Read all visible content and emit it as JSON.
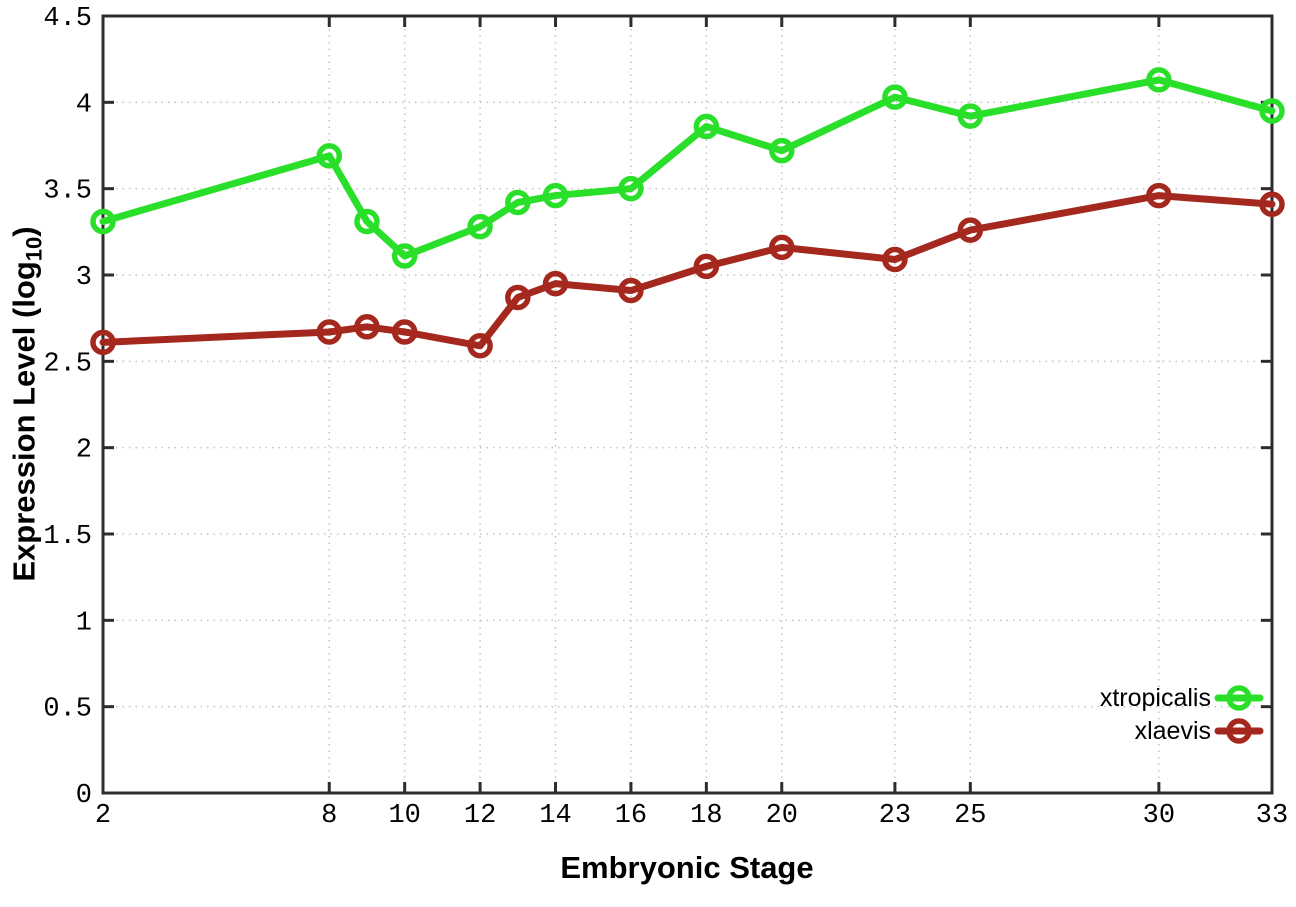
{
  "chart_data": {
    "type": "line",
    "title": "",
    "xlabel": "Embryonic Stage",
    "ylabel": "Expression Level (log10)",
    "ylabel_parts": {
      "pre": "Expression Level (log",
      "sub": "10",
      "post": ")"
    },
    "xlim": [
      2,
      33
    ],
    "ylim": [
      0,
      4.5
    ],
    "grid": true,
    "legend_position": "inside-bottom-right",
    "x": [
      2,
      8,
      9,
      10,
      12,
      13,
      14,
      16,
      18,
      20,
      23,
      25,
      30,
      33
    ],
    "xticks": [
      2,
      8,
      10,
      12,
      14,
      16,
      18,
      20,
      23,
      25,
      30,
      33
    ],
    "xtick_labels": [
      "2",
      "8",
      "10",
      "12",
      "14",
      "16",
      "18",
      "20",
      "23",
      "25",
      "30",
      "33"
    ],
    "yticks": [
      0,
      0.5,
      1,
      1.5,
      2,
      2.5,
      3,
      3.5,
      4,
      4.5
    ],
    "ytick_labels": [
      "0",
      "0.5",
      "1",
      "1.5",
      "2",
      "2.5",
      "3",
      "3.5",
      "4",
      "4.5"
    ],
    "marker": "open-circle",
    "series": [
      {
        "name": "xtropicalis",
        "color": "#2ADF2A",
        "values": [
          3.31,
          3.69,
          3.31,
          3.11,
          3.28,
          3.42,
          3.46,
          3.5,
          3.86,
          3.72,
          4.03,
          3.92,
          4.13,
          3.95
        ]
      },
      {
        "name": "xlaevis",
        "color": "#A5281E",
        "values": [
          2.61,
          2.67,
          2.7,
          2.67,
          2.59,
          2.87,
          2.95,
          2.91,
          3.05,
          3.16,
          3.09,
          3.26,
          3.46,
          3.41
        ]
      }
    ],
    "colors": {
      "grid": "#C4C4C4",
      "axis": "#2D2D2D",
      "text": "#000000",
      "background": "#FFFFFF"
    }
  }
}
